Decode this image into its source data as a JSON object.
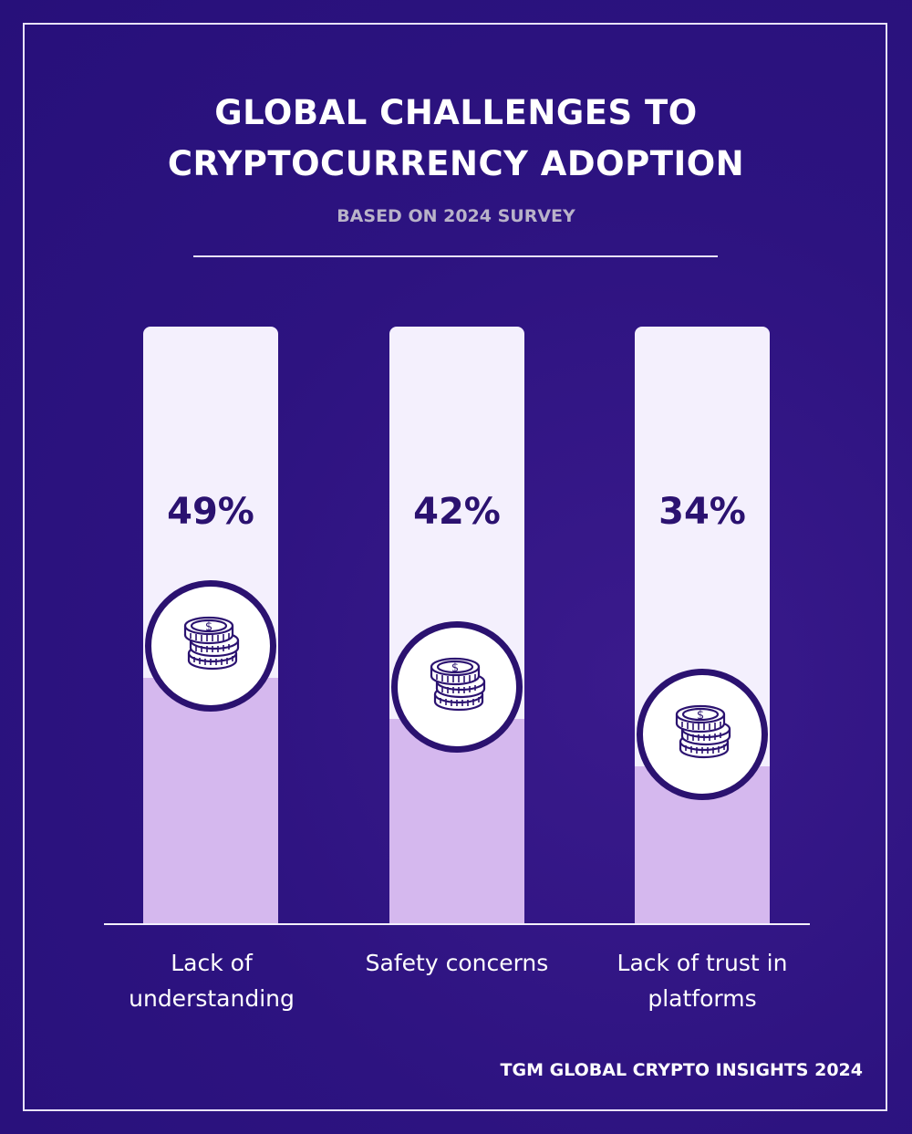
{
  "colors": {
    "background": "#2d1380",
    "bar": "#f4f0fd",
    "fill": "#d5b8ee",
    "text_dark": "#2b1270"
  },
  "chart_data": {
    "type": "bar",
    "title": "GLOBAL CHALLENGES TO CRYPTOCURRENCY ADOPTION",
    "title_lines": [
      "GLOBAL CHALLENGES TO",
      "CRYPTOCURRENCY ADOPTION"
    ],
    "subtitle": "BASED ON 2024 SURVEY",
    "categories": [
      "Lack of understanding",
      "Safety concerns",
      "Lack of trust in platforms"
    ],
    "values": [
      49,
      42,
      34
    ],
    "data_labels": [
      "49%",
      "42%",
      "34%"
    ],
    "unit": "%",
    "icon": "coin-stack-dollar-icon",
    "grid": false
  },
  "footer": "TGM GLOBAL CRYPTO INSIGHTS 2024"
}
